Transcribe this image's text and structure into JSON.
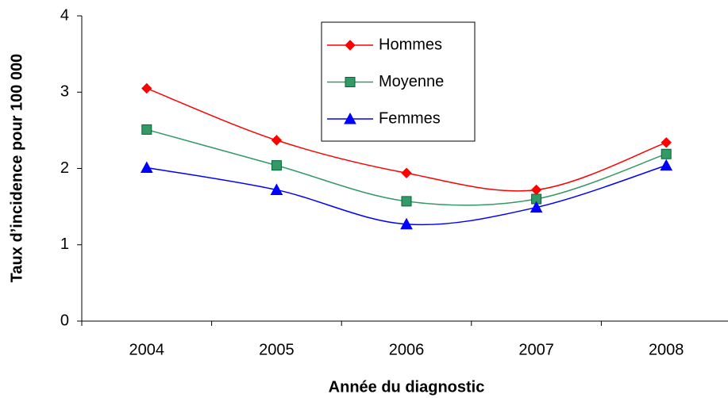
{
  "chart_data": {
    "type": "line",
    "xlabel": "Année du diagnostic",
    "ylabel": "Taux d’incidence pour 100 000",
    "categories": [
      "2004",
      "2005",
      "2006",
      "2007",
      "2008"
    ],
    "series": [
      {
        "name": "Hommes",
        "color": "#ff0000",
        "marker": "diamond",
        "values": [
          3.05,
          2.37,
          1.94,
          1.72,
          2.34
        ]
      },
      {
        "name": "Moyenne",
        "color": "#339966",
        "marker": "square",
        "values": [
          2.51,
          2.04,
          1.57,
          1.6,
          2.19
        ]
      },
      {
        "name": "Femmes",
        "color": "#0000ff",
        "marker": "triangle",
        "values": [
          2.01,
          1.72,
          1.27,
          1.49,
          2.04
        ]
      }
    ],
    "ylim": [
      0,
      4
    ],
    "yticks": [
      0,
      1,
      2,
      3,
      4
    ],
    "smooth": true,
    "legend": "top"
  }
}
